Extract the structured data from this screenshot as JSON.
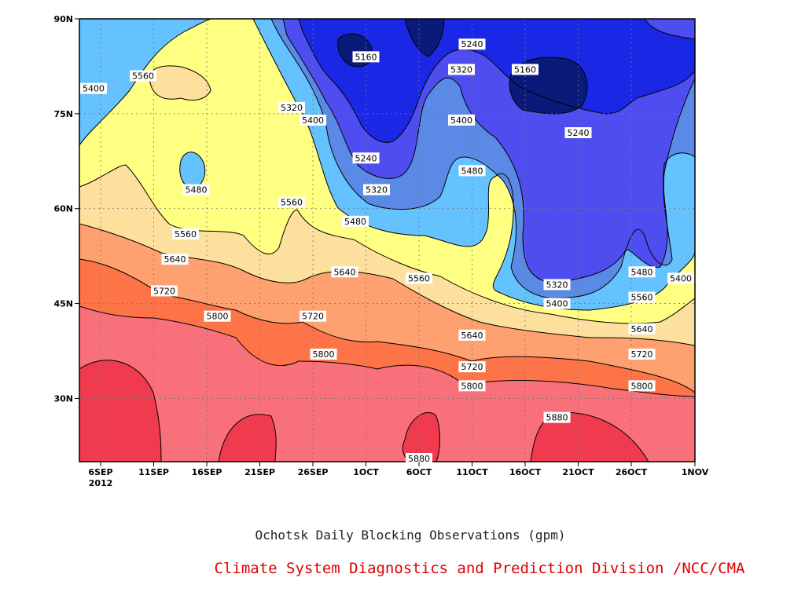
{
  "colors": {
    "band_lt_5160": "#0a1a7a",
    "band_5160_5240": "#1a28e6",
    "band_5240_5320": "#4e4ef0",
    "band_5320_5400": "#5a8ae6",
    "band_5400_5480": "#64c2ff",
    "band_5480_5560": "#ffff82",
    "band_5560_5640": "#fee09e",
    "band_5640_5720": "#fea070",
    "band_5720_5800": "#fd7448",
    "band_5800_5880": "#f8707a",
    "band_ge_5880": "#f03a4e",
    "title_text": "#222222",
    "credit_text": "#e00000"
  },
  "chart_data": {
    "type": "heatmap",
    "title": "Ochotsk Daily Blocking Observations (gpm)",
    "units": "gpm",
    "x_axis": {
      "ticks": [
        "6SEP",
        "11SEP",
        "16SEP",
        "21SEP",
        "26SEP",
        "1OCT",
        "6OCT",
        "11OCT",
        "16OCT",
        "21OCT",
        "26OCT",
        "1NOV"
      ],
      "year_label": "2012",
      "range": [
        "2012-09-04",
        "2012-11-01"
      ]
    },
    "y_axis": {
      "ticks": [
        "30N",
        "45N",
        "60N",
        "75N",
        "90N"
      ],
      "range": [
        20,
        90
      ],
      "unit": "latitude"
    },
    "grid": "dotted",
    "contour_levels": [
      5160,
      5240,
      5320,
      5400,
      5480,
      5560,
      5640,
      5720,
      5800,
      5880
    ],
    "contour_labels": [
      {
        "value": "5400",
        "date": "2012-09-04",
        "lat": 79
      },
      {
        "value": "5560",
        "date": "2012-09-10",
        "lat": 81
      },
      {
        "value": "5480",
        "date": "2012-09-15",
        "lat": 63
      },
      {
        "value": "5560",
        "date": "2012-09-14",
        "lat": 56
      },
      {
        "value": "5640",
        "date": "2012-09-13",
        "lat": 52
      },
      {
        "value": "5720",
        "date": "2012-09-12",
        "lat": 47
      },
      {
        "value": "5800",
        "date": "2012-09-17",
        "lat": 43
      },
      {
        "value": "5320",
        "date": "2012-09-24",
        "lat": 76
      },
      {
        "value": "5400",
        "date": "2012-09-26",
        "lat": 74
      },
      {
        "value": "5160",
        "date": "2012-10-01",
        "lat": 84
      },
      {
        "value": "5240",
        "date": "2012-10-01",
        "lat": 68
      },
      {
        "value": "5320",
        "date": "2012-10-02",
        "lat": 63
      },
      {
        "value": "5480",
        "date": "2012-09-30",
        "lat": 58
      },
      {
        "value": "5560",
        "date": "2012-09-24",
        "lat": 61
      },
      {
        "value": "5640",
        "date": "2012-09-29",
        "lat": 50
      },
      {
        "value": "5720",
        "date": "2012-09-26",
        "lat": 43
      },
      {
        "value": "5800",
        "date": "2012-09-27",
        "lat": 37
      },
      {
        "value": "5240",
        "date": "2012-10-11",
        "lat": 86
      },
      {
        "value": "5320",
        "date": "2012-10-10",
        "lat": 82
      },
      {
        "value": "5400",
        "date": "2012-10-10",
        "lat": 74
      },
      {
        "value": "5480",
        "date": "2012-10-11",
        "lat": 66
      },
      {
        "value": "5560",
        "date": "2012-10-06",
        "lat": 49
      },
      {
        "value": "5640",
        "date": "2012-10-11",
        "lat": 40
      },
      {
        "value": "5720",
        "date": "2012-10-11",
        "lat": 35
      },
      {
        "value": "5800",
        "date": "2012-10-11",
        "lat": 32
      },
      {
        "value": "5880",
        "date": "2012-10-06",
        "lat": 20
      },
      {
        "value": "5160",
        "date": "2012-10-16",
        "lat": 82
      },
      {
        "value": "5240",
        "date": "2012-10-21",
        "lat": 72
      },
      {
        "value": "5320",
        "date": "2012-10-19",
        "lat": 48
      },
      {
        "value": "5400",
        "date": "2012-10-19",
        "lat": 45
      },
      {
        "value": "5880",
        "date": "2012-10-19",
        "lat": 27
      },
      {
        "value": "5480",
        "date": "2012-10-27",
        "lat": 50
      },
      {
        "value": "5400",
        "date": "2012-10-31",
        "lat": 49
      },
      {
        "value": "5560",
        "date": "2012-10-27",
        "lat": 46
      },
      {
        "value": "5640",
        "date": "2012-10-27",
        "lat": 41
      },
      {
        "value": "5720",
        "date": "2012-10-27",
        "lat": 37
      },
      {
        "value": "5800",
        "date": "2012-10-27",
        "lat": 32
      }
    ]
  },
  "footer": {
    "title": "Ochotsk Daily Blocking Observations (gpm)",
    "credit": "Climate System Diagnostics and Prediction Division /NCC/CMA"
  }
}
